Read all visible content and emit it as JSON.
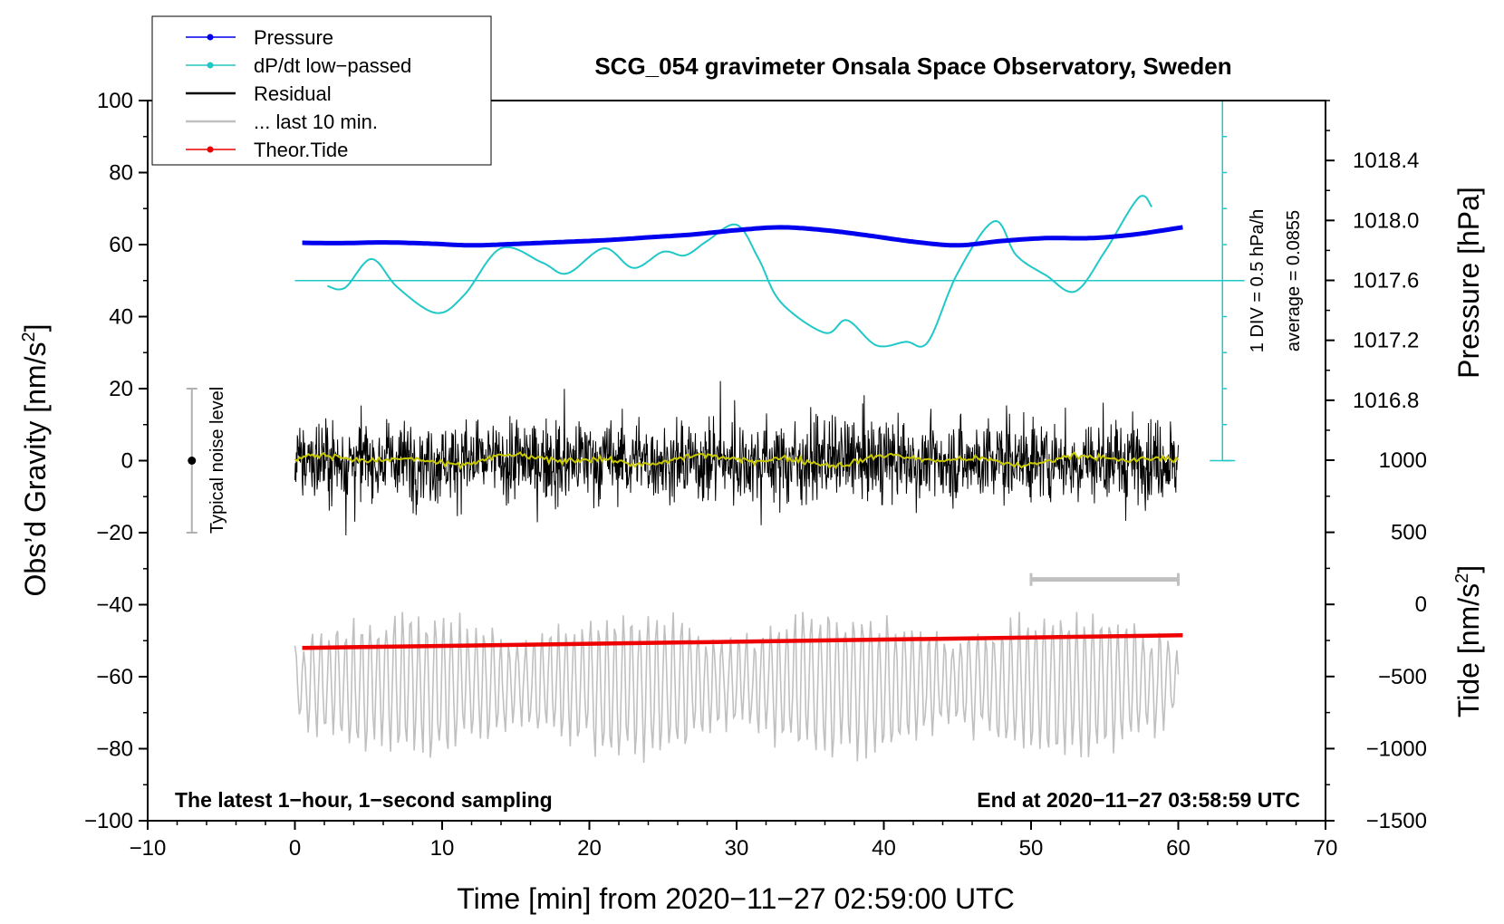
{
  "chart_data": {
    "type": "line",
    "title": "SCG_054 gravimeter Onsala Space Observatory, Sweden",
    "xlabel": "Time [min] from 2020−11−27 02:59:00 UTC",
    "ylabel_main": "Obs’d Gravity [nm/s",
    "ylabel_main_sup": "2",
    "ylabel_main_end": "]",
    "ylabel_pressure": "Pressure [hPa]",
    "ylabel_tide": "Tide [nm/s",
    "ylabel_tide_sup": "2",
    "ylabel_tide_end": "]",
    "xlim": [
      -10,
      70
    ],
    "ylim": [
      -100,
      100
    ],
    "x_ticks": [
      "−10",
      "0",
      "10",
      "20",
      "30",
      "40",
      "50",
      "60",
      "70"
    ],
    "x_tick_values": [
      -10,
      0,
      10,
      20,
      30,
      40,
      50,
      60,
      70
    ],
    "y_ticks": [
      "−100",
      "−80",
      "−60",
      "−40",
      "−20",
      "0",
      "20",
      "40",
      "60",
      "80",
      "100"
    ],
    "y_tick_values": [
      -100,
      -80,
      -60,
      -40,
      -20,
      0,
      20,
      40,
      60,
      80,
      100
    ],
    "pressure_ticks": [
      "1016.8",
      "1017.2",
      "1017.6",
      "1018.0",
      "1018.4"
    ],
    "pressure_tick_values": [
      1016.8,
      1017.2,
      1017.6,
      1018.0,
      1018.4
    ],
    "pressure_range": [
      1016.4,
      1018.8
    ],
    "tide_ticks": [
      "−1500",
      "−1000",
      "−500",
      "0",
      "500",
      "1000"
    ],
    "tide_tick_values": [
      -1500,
      -1000,
      -500,
      0,
      500,
      1000
    ],
    "tide_range": [
      -1500,
      1000
    ],
    "legend": [
      {
        "label": "Pressure",
        "color": "#0000ee",
        "marker": true
      },
      {
        "label": "dP/dt low−passed",
        "color": "#20c8c8",
        "marker": true
      },
      {
        "label": "Residual",
        "color": "#000000",
        "marker": false
      },
      {
        "label": "... last 10 min.",
        "color": "#c0c0c0",
        "marker": false
      },
      {
        "label": "Theor.Tide",
        "color": "#ee0000",
        "marker": true
      }
    ],
    "annotations": {
      "bottom_left": "The latest 1−hour, 1−second sampling",
      "bottom_right": "End at 2020−11−27 03:58:59 UTC",
      "div_label": "1 DIV = 0.5 hPa/h",
      "average_label": "average = 0.0855",
      "noise_label": "Typical noise level"
    },
    "noise_bar": {
      "x": -7,
      "center": 0,
      "low": -20,
      "high": 20
    },
    "last10_bar": {
      "x_start": 50,
      "x_end": 60,
      "y": -33
    },
    "dpdt_baseline_y": 50,
    "dpdt_scale_bar": {
      "x": 63,
      "y_bottom": 0,
      "y_top": 100
    },
    "series": [
      {
        "name": "Pressure",
        "color": "#0000ee",
        "x": [
          0.5,
          3,
          6,
          9,
          12,
          15,
          18,
          21,
          24,
          27,
          30,
          33,
          36,
          39,
          42,
          45,
          48,
          51,
          54,
          57,
          60.3
        ],
        "values": [
          60.5,
          60.4,
          60.6,
          60.3,
          59.8,
          60.2,
          60.7,
          61.2,
          62,
          62.8,
          64,
          64.8,
          64,
          62.5,
          60.8,
          59.8,
          61,
          61.8,
          61.8,
          62.8,
          64.8
        ]
      },
      {
        "name": "dP/dt low−passed",
        "color": "#20c8c8",
        "x": [
          2.2,
          3.4,
          5.2,
          7,
          9.6,
          11.5,
          14,
          16.8,
          18.5,
          21,
          23,
          25,
          26.5,
          28,
          30,
          31.5,
          33,
          36,
          37.5,
          39.5,
          41.5,
          43,
          45,
          47.5,
          49,
          51,
          53,
          55,
          57.3,
          58.2
        ],
        "values": [
          48.5,
          48,
          56,
          48,
          41,
          46,
          59,
          55,
          52,
          59,
          53.5,
          58,
          57,
          61,
          65.5,
          56,
          44,
          35.5,
          39,
          32,
          33,
          33,
          52,
          66.5,
          57,
          51.5,
          47,
          58,
          73,
          70.5
        ]
      },
      {
        "name": "Theor.Tide",
        "color": "#ee0000",
        "x": [
          0.5,
          60.3
        ],
        "values": [
          -52,
          -48.5
        ]
      },
      {
        "name": "Residual",
        "color": "#000000",
        "x_range": [
          0,
          60
        ],
        "amplitude_typical": 10,
        "min": -26,
        "max": 27,
        "mean": 0
      },
      {
        "name": "... last 10 min.",
        "color": "#c0c0c0",
        "x_range": [
          0,
          60
        ],
        "center": -62,
        "min": -85,
        "max": -42
      }
    ]
  }
}
